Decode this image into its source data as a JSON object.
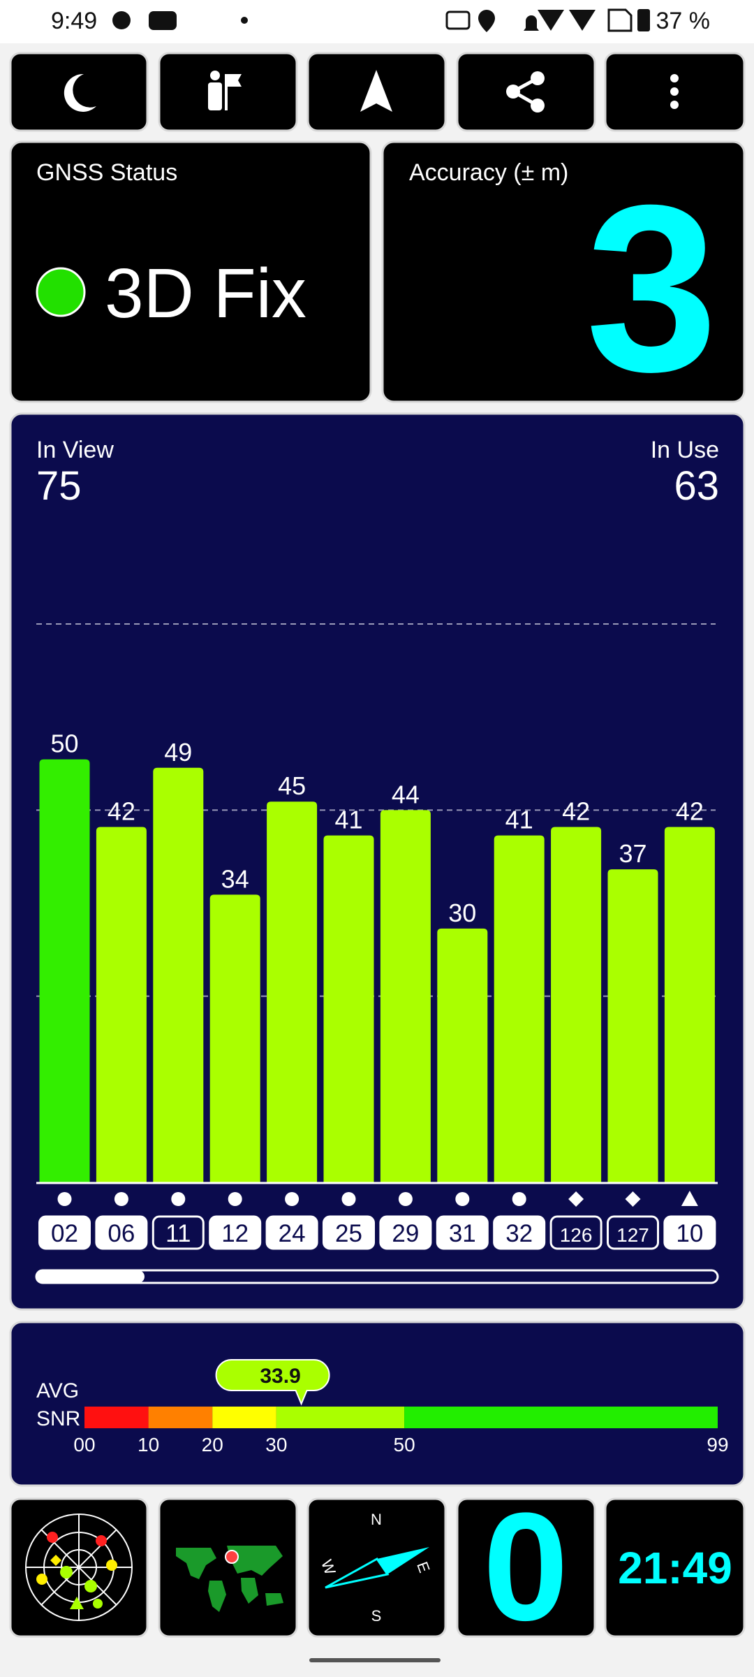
{
  "status_bar": {
    "time": "9:49",
    "battery": "37 %"
  },
  "gnss_status": {
    "title": "GNSS Status",
    "fix": "3D Fix",
    "color": "#22e000"
  },
  "accuracy": {
    "title": "Accuracy (± m)",
    "value": 3
  },
  "chart_data": {
    "type": "bar",
    "in_view_label": "In View",
    "in_view": 75,
    "in_use_label": "In Use",
    "in_use": 63,
    "categories": [
      "02",
      "06",
      "11",
      "12",
      "24",
      "25",
      "29",
      "31",
      "32",
      "126",
      "127",
      "10"
    ],
    "values": [
      50,
      42,
      49,
      34,
      45,
      41,
      44,
      30,
      41,
      42,
      37,
      42
    ],
    "colors": [
      "#33ee00",
      "#aaff00",
      "#aaff00",
      "#aaff00",
      "#aaff00",
      "#aaff00",
      "#aaff00",
      "#aaff00",
      "#aaff00",
      "#aaff00",
      "#aaff00",
      "#aaff00"
    ],
    "shapes": [
      "circle",
      "circle",
      "circle",
      "circle",
      "circle",
      "circle",
      "circle",
      "circle",
      "circle",
      "diamond",
      "diamond",
      "triangle"
    ],
    "used": [
      true,
      true,
      false,
      true,
      true,
      true,
      true,
      true,
      true,
      false,
      false,
      true
    ],
    "ylim": [
      0,
      66
    ],
    "grid_lines": [
      22,
      44,
      66
    ]
  },
  "avg_snr": {
    "label_1": "AVG",
    "label_2": "SNR",
    "value": 33.9,
    "xlim": [
      0,
      99
    ],
    "xticks": [
      {
        "value": 0,
        "label": "00"
      },
      10,
      20,
      30,
      50,
      99
    ],
    "segments": [
      {
        "from": 0,
        "to": 10,
        "color": "#ff1010"
      },
      {
        "from": 10,
        "to": 20,
        "color": "#ff8000"
      },
      {
        "from": 20,
        "to": 30,
        "color": "#ffff00"
      },
      {
        "from": 30,
        "to": 50,
        "color": "#aaff00"
      },
      {
        "from": 50,
        "to": 99,
        "color": "#22ee00"
      }
    ]
  },
  "tiles": {
    "compass": {
      "n": "N",
      "e": "E",
      "s": "S",
      "w": "W"
    },
    "speed": 0,
    "clock": "21:49"
  }
}
